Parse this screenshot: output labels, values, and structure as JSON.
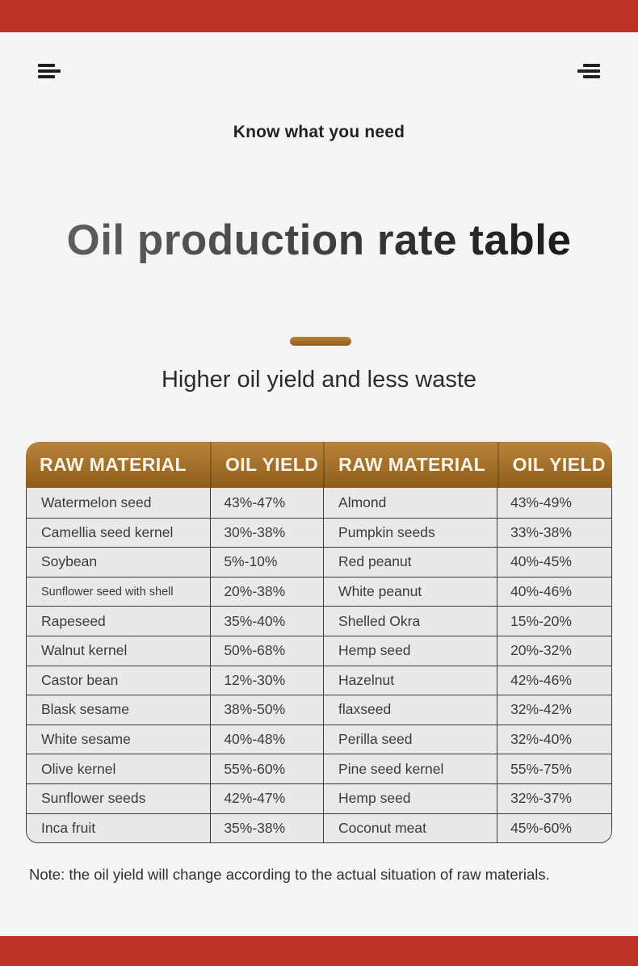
{
  "page": {
    "background_color": "#f5f5f6",
    "top_bar_color": "#bb3124",
    "bottom_bar_color": "#bb3124",
    "accent_bronze": "#a8742e",
    "icon_color": "#1f2023"
  },
  "header": {
    "eyebrow": "Know what you need",
    "title": "Oil production rate table",
    "subtitle": "Higher oil yield and less waste",
    "title_gradient_start": "#646464",
    "title_gradient_end": "#121212"
  },
  "icons": {
    "left": "menu-lines-left",
    "right": "menu-lines-right"
  },
  "table": {
    "header_bg_top": "#b8843c",
    "header_bg_bottom": "#8f5d1b",
    "header_text_color": "#fbf4e6",
    "body_bg": "#e9e9ea",
    "border_color": "#39393b",
    "columns": [
      "RAW MATERIAL",
      "OIL YIELD",
      "RAW MATERIAL",
      "OIL YIELD"
    ],
    "rows": [
      [
        "Watermelon seed",
        "43%-47%",
        "Almond",
        "43%-49%"
      ],
      [
        "Camellia seed kernel",
        "30%-38%",
        "Pumpkin seeds",
        "33%-38%"
      ],
      [
        "Soybean",
        "5%-10%",
        "Red peanut",
        "40%-45%"
      ],
      [
        "Sunflower seed with shell",
        "20%-38%",
        "White peanut",
        "40%-46%"
      ],
      [
        "Rapeseed",
        "35%-40%",
        "Shelled Okra",
        "15%-20%"
      ],
      [
        "Walnut kernel",
        "50%-68%",
        "Hemp seed",
        "20%-32%"
      ],
      [
        "Castor bean",
        "12%-30%",
        "Hazelnut",
        "42%-46%"
      ],
      [
        "Blask sesame",
        "38%-50%",
        "flaxseed",
        "32%-42%"
      ],
      [
        "White sesame",
        "40%-48%",
        "Perilla seed",
        "32%-40%"
      ],
      [
        "Olive kernel",
        "55%-60%",
        "Pine seed kernel",
        "55%-75%"
      ],
      [
        "Sunflower seeds",
        "42%-47%",
        "Hemp seed",
        "32%-37%"
      ],
      [
        "Inca fruit",
        "35%-38%",
        "Coconut meat",
        "45%-60%"
      ]
    ]
  },
  "note": "Note: the oil yield will change according to the actual situation of raw materials."
}
